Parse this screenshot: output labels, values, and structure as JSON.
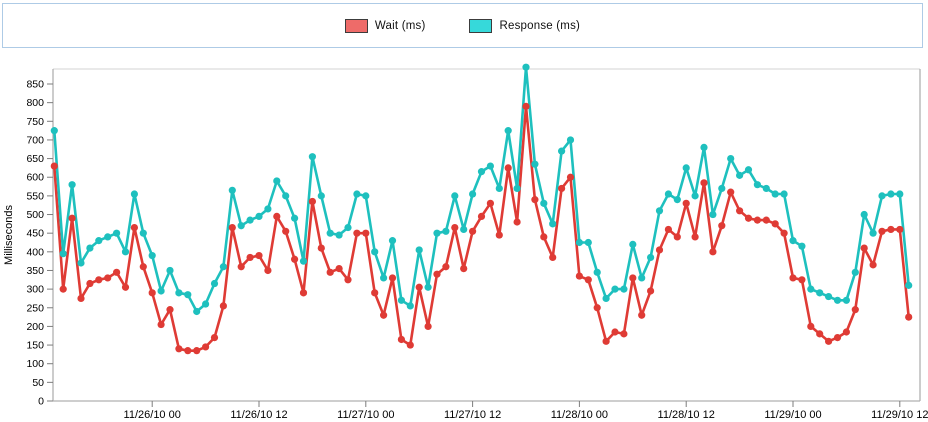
{
  "legend": {
    "items": [
      {
        "label": "Wait (ms)",
        "swatch_color": "#ee6b69",
        "series_key": "wait"
      },
      {
        "label": "Response (ms)",
        "swatch_color": "#36d9da",
        "series_key": "response"
      }
    ],
    "panel_border_color": "#aecbe6"
  },
  "colors": {
    "wait_line": "#df3b35",
    "response_line": "#1ec0be",
    "plot_border_side": "#b0b0b0",
    "plot_border_top": "#dcdcdc",
    "tick_text": "#000000"
  },
  "chart_data": {
    "type": "line",
    "title": "",
    "xlabel": "",
    "ylabel": "Milliseconds",
    "ylim": [
      0,
      850
    ],
    "y_tick_step": 50,
    "grid": false,
    "legend_position": "top-center",
    "x_start": "11/25/10 13:00",
    "x_interval_hours": 1,
    "point_count": 97,
    "x_tick_indices": [
      11,
      23,
      35,
      47,
      59,
      71,
      83,
      95
    ],
    "x_tick_labels": [
      "11/26/10 00",
      "11/26/10 12",
      "11/27/10 00",
      "11/27/10 12",
      "11/28/10 00",
      "11/28/10 12",
      "11/29/10 00",
      "11/29/10 12"
    ],
    "series": [
      {
        "name": "Wait (ms)",
        "color": "#df3b35",
        "values": [
          630,
          300,
          490,
          275,
          315,
          325,
          330,
          345,
          305,
          465,
          360,
          290,
          205,
          245,
          140,
          135,
          135,
          145,
          170,
          255,
          465,
          360,
          385,
          390,
          350,
          495,
          455,
          380,
          290,
          535,
          410,
          345,
          355,
          325,
          450,
          450,
          290,
          230,
          330,
          165,
          150,
          305,
          200,
          340,
          360,
          465,
          355,
          455,
          495,
          530,
          445,
          625,
          480,
          790,
          540,
          440,
          385,
          570,
          600,
          335,
          325,
          250,
          160,
          185,
          180,
          330,
          230,
          295,
          405,
          460,
          440,
          530,
          440,
          585,
          400,
          470,
          560,
          510,
          490,
          485,
          485,
          475,
          450,
          330,
          325,
          200,
          180,
          160,
          170,
          185,
          245,
          410,
          365,
          455,
          460,
          460,
          225
        ]
      },
      {
        "name": "Response (ms)",
        "color": "#1ec0be",
        "values": [
          725,
          395,
          580,
          370,
          410,
          430,
          440,
          450,
          400,
          555,
          450,
          390,
          295,
          350,
          290,
          285,
          240,
          260,
          315,
          360,
          565,
          470,
          485,
          495,
          515,
          590,
          550,
          490,
          375,
          655,
          550,
          450,
          445,
          465,
          555,
          550,
          400,
          330,
          430,
          270,
          255,
          405,
          305,
          450,
          455,
          550,
          460,
          555,
          615,
          630,
          570,
          725,
          570,
          895,
          635,
          530,
          475,
          670,
          700,
          425,
          425,
          345,
          275,
          300,
          300,
          420,
          330,
          385,
          510,
          555,
          540,
          625,
          550,
          680,
          500,
          570,
          650,
          605,
          620,
          580,
          570,
          555,
          555,
          430,
          415,
          300,
          290,
          280,
          270,
          270,
          345,
          500,
          450,
          550,
          555,
          555,
          310
        ]
      }
    ]
  }
}
